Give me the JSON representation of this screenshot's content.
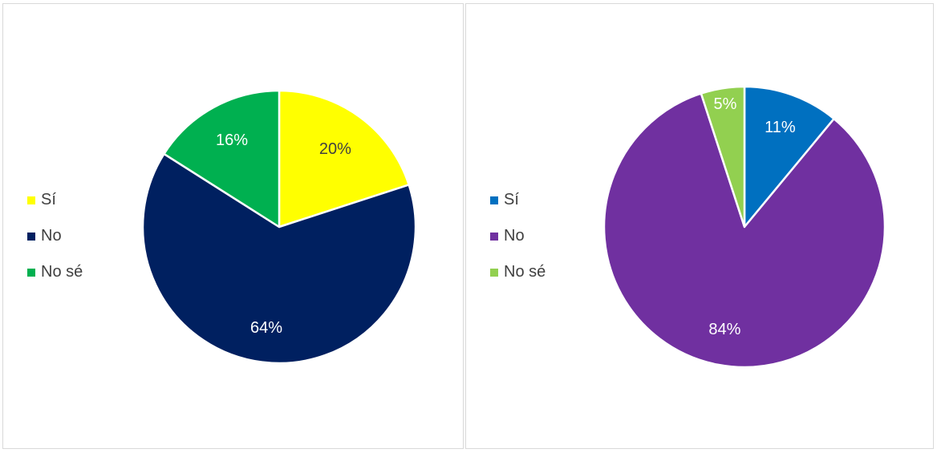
{
  "chart_data": [
    {
      "type": "pie",
      "categories": [
        "Sí",
        "No",
        "No sé"
      ],
      "values": [
        20,
        64,
        16
      ],
      "data_labels": [
        "20%",
        "64%",
        "16%"
      ],
      "colors": [
        "#FFFF00",
        "#002060",
        "#00B050"
      ],
      "label_colors": [
        "#404040",
        "#ffffff",
        "#ffffff"
      ],
      "legend_position": "left"
    },
    {
      "type": "pie",
      "categories": [
        "Sí",
        "No",
        "No sé"
      ],
      "values": [
        11,
        84,
        5
      ],
      "data_labels": [
        "11%",
        "84%",
        "5%"
      ],
      "colors": [
        "#0070C0",
        "#7030A0",
        "#92D050"
      ],
      "label_colors": [
        "#ffffff",
        "#ffffff",
        "#ffffff"
      ],
      "legend_position": "left"
    }
  ]
}
